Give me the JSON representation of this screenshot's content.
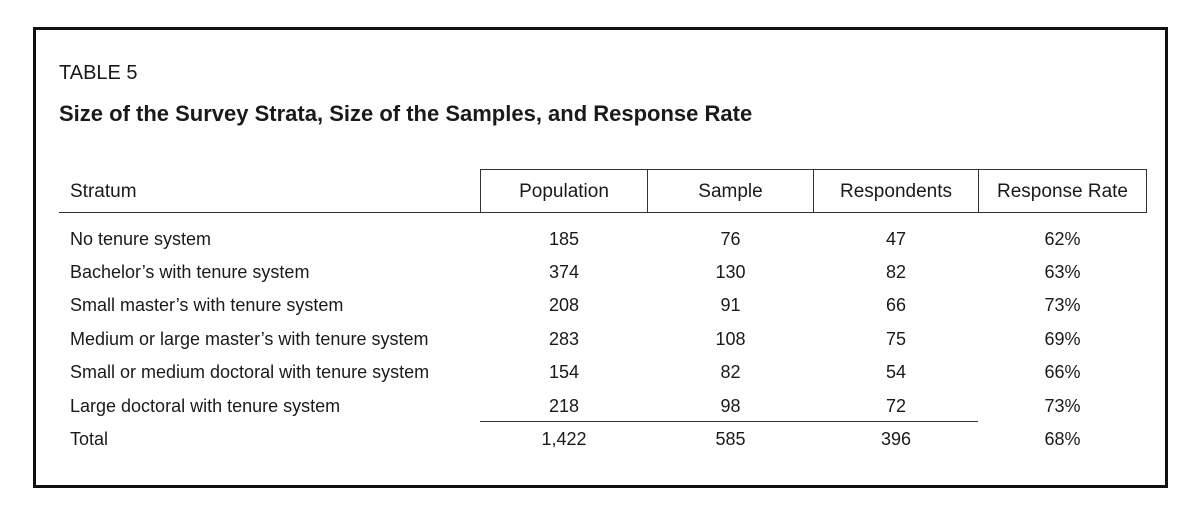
{
  "table_label": "TABLE 5",
  "title": "Size of the Survey Strata, Size of the Samples, and Response Rate",
  "headers": {
    "stratum": "Stratum",
    "population": "Population",
    "sample": "Sample",
    "respondents": "Respondents",
    "response_rate": "Response Rate"
  },
  "rows": [
    {
      "stratum": "No tenure system",
      "population": "185",
      "sample": "76",
      "respondents": "47",
      "response_rate": "62%"
    },
    {
      "stratum": "Bachelor’s with tenure system",
      "population": "374",
      "sample": "130",
      "respondents": "82",
      "response_rate": "63%"
    },
    {
      "stratum": "Small master’s with tenure system",
      "population": "208",
      "sample": "91",
      "respondents": "66",
      "response_rate": "73%"
    },
    {
      "stratum": "Medium or large master’s with tenure system",
      "population": "283",
      "sample": "108",
      "respondents": "75",
      "response_rate": "69%"
    },
    {
      "stratum": "Small or medium doctoral with tenure system",
      "population": "154",
      "sample": "82",
      "respondents": "54",
      "response_rate": "66%"
    },
    {
      "stratum": "Large doctoral with tenure system",
      "population": "218",
      "sample": "98",
      "respondents": "72",
      "response_rate": "73%"
    }
  ],
  "total": {
    "stratum": "Total",
    "population": "1,422",
    "sample": "585",
    "respondents": "396",
    "response_rate": "68%"
  }
}
